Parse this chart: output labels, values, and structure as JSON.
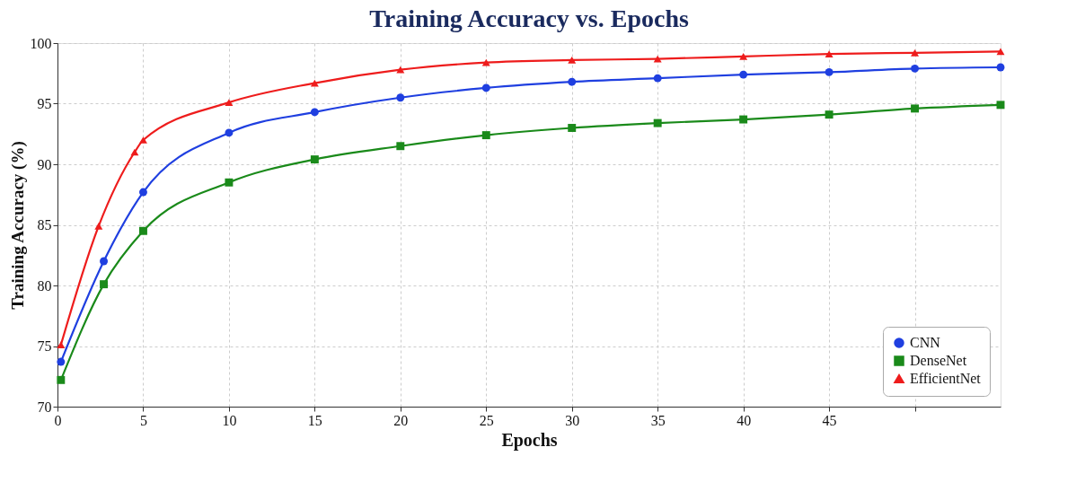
{
  "chart_data": {
    "type": "line",
    "title": "Training Accuracy vs. Epochs",
    "xlabel": "Epochs",
    "ylabel": "Training Accuracy (%)",
    "xlim": [
      0,
      55
    ],
    "xticks": [
      0,
      5,
      10,
      15,
      20,
      25,
      30,
      35,
      40,
      45,
      {
        "value": 50,
        "label": null
      }
    ],
    "ylim": [
      70,
      100
    ],
    "yticks": [
      70,
      75,
      80,
      85,
      90,
      95,
      100
    ],
    "grid": true,
    "legend": "bottom right",
    "line_style": "solid",
    "series": [
      {
        "name": "CNN",
        "color": "#1f3fe0",
        "marker": "circle",
        "x": [
          0.2,
          2.7,
          5,
          10,
          15,
          20,
          25,
          30,
          35,
          40,
          45,
          50,
          55
        ],
        "values": [
          73.7,
          82.0,
          87.7,
          92.6,
          94.3,
          95.5,
          96.3,
          96.8,
          97.1,
          97.4,
          97.6,
          97.9,
          98.0
        ]
      },
      {
        "name": "DenseNet",
        "color": "#1a8a1a",
        "marker": "square",
        "x": [
          0.2,
          2.7,
          5,
          10,
          15,
          20,
          25,
          30,
          35,
          40,
          45,
          50,
          55
        ],
        "values": [
          72.2,
          80.1,
          84.5,
          88.5,
          90.4,
          91.5,
          92.4,
          93.0,
          93.4,
          93.7,
          94.1,
          94.6,
          94.9
        ]
      },
      {
        "name": "EfficientNet",
        "color": "#ee1c1c",
        "marker": "triangle",
        "x": [
          0.2,
          2.4,
          4.5,
          5,
          10,
          15,
          20,
          25,
          30,
          35,
          40,
          45,
          50,
          55
        ],
        "values": [
          75.1,
          84.9,
          91.0,
          92.0,
          95.1,
          96.7,
          97.8,
          98.4,
          98.6,
          98.7,
          98.9,
          99.1,
          99.2,
          99.3
        ]
      }
    ]
  }
}
